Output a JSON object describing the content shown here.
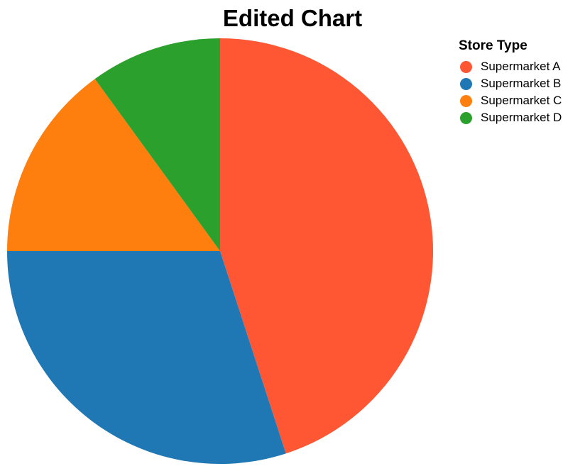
{
  "chart_data": {
    "type": "pie",
    "title": "Edited Chart",
    "legend_title": "Store Type",
    "legend_position": "top-right",
    "slices": [
      {
        "label": "Supermarket A",
        "value": 45,
        "color": "#ff5733"
      },
      {
        "label": "Supermarket B",
        "value": 30,
        "color": "#1f77b4"
      },
      {
        "label": "Supermarket C",
        "value": 15,
        "color": "#ff7f0e"
      },
      {
        "label": "Supermarket D",
        "value": 10,
        "color": "#2ca02c"
      }
    ]
  }
}
